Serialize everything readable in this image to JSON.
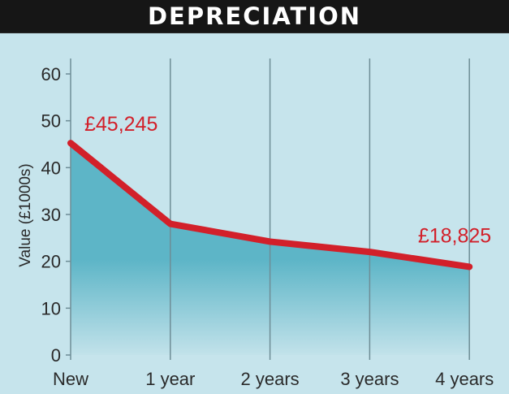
{
  "chart_data": {
    "type": "area",
    "title": "DEPRECIATION",
    "xlabel": "",
    "ylabel": "Value (£1000s)",
    "categories": [
      "New",
      "1 year",
      "2 years",
      "3 years",
      "4 years"
    ],
    "series": [
      {
        "values": [
          45.245,
          28.0,
          24.2,
          22.0,
          18.825
        ]
      }
    ],
    "ylim": [
      0,
      60
    ],
    "yticks": [
      0,
      10,
      20,
      30,
      40,
      50,
      60
    ],
    "grid": "vertical",
    "annotations": [
      {
        "category": "New",
        "text": "£45,245"
      },
      {
        "category": "4 years",
        "text": "£18,825"
      }
    ],
    "colors": {
      "line": "#d2202a",
      "fill_top": "#5db5c7",
      "fill_bottom": "#c2e2ea",
      "background": "#c6e4ec",
      "grid": "#6e8d96",
      "title_bar": "#161616"
    }
  }
}
